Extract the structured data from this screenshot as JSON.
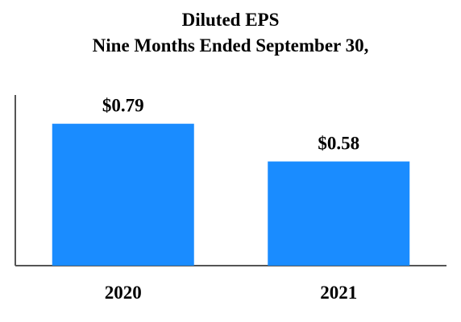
{
  "title_line1": "Diluted EPS",
  "title_line2": "Nine Months Ended September 30,",
  "chart_data": {
    "type": "bar",
    "categories": [
      "2020",
      "2021"
    ],
    "values": [
      0.79,
      0.58
    ],
    "data_labels": [
      "$0.79",
      "$0.58"
    ],
    "title": "Diluted EPS Nine Months Ended September 30,",
    "xlabel": "",
    "ylabel": "",
    "ylim": [
      0,
      0.95
    ],
    "grid": false,
    "legend": "none",
    "bar_color": "#1A8CFF",
    "axis_color": "#555555"
  }
}
